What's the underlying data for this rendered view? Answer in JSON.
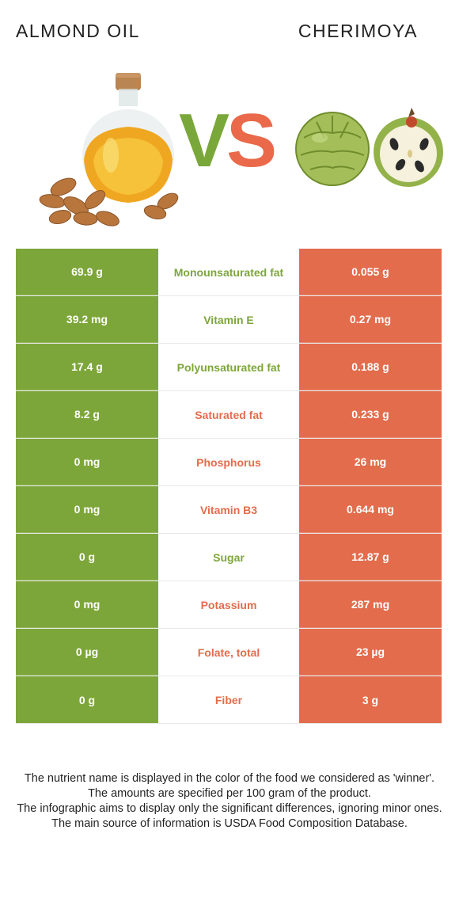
{
  "header": {
    "left_food": "ALMOND OIL",
    "right_food": "CHERIMOYA",
    "vs_v": "V",
    "vs_s": "S"
  },
  "colors": {
    "left_accent": "#7da63a",
    "right_accent": "#e36c4c"
  },
  "rows": [
    {
      "left": "69.9 g",
      "nutrient": "Monounsaturated fat",
      "right": "0.055 g",
      "winner": "left"
    },
    {
      "left": "39.2 mg",
      "nutrient": "Vitamin E",
      "right": "0.27 mg",
      "winner": "left"
    },
    {
      "left": "17.4 g",
      "nutrient": "Polyunsaturated fat",
      "right": "0.188 g",
      "winner": "left"
    },
    {
      "left": "8.2 g",
      "nutrient": "Saturated fat",
      "right": "0.233 g",
      "winner": "right"
    },
    {
      "left": "0 mg",
      "nutrient": "Phosphorus",
      "right": "26 mg",
      "winner": "right"
    },
    {
      "left": "0 mg",
      "nutrient": "Vitamin B3",
      "right": "0.644 mg",
      "winner": "right"
    },
    {
      "left": "0 g",
      "nutrient": "Sugar",
      "right": "12.87 g",
      "winner": "left"
    },
    {
      "left": "0 mg",
      "nutrient": "Potassium",
      "right": "287 mg",
      "winner": "right"
    },
    {
      "left": "0 µg",
      "nutrient": "Folate, total",
      "right": "23 µg",
      "winner": "right"
    },
    {
      "left": "0 g",
      "nutrient": "Fiber",
      "right": "3 g",
      "winner": "right"
    }
  ],
  "footer": {
    "line1": "The nutrient name is displayed in the color of the food we considered as 'winner'.",
    "line2": "The amounts are specified per 100 gram of the product.",
    "line3": "The infographic aims to display only the significant differences, ignoring minor ones.",
    "line4": "The main source of information is USDA Food Composition Database."
  }
}
